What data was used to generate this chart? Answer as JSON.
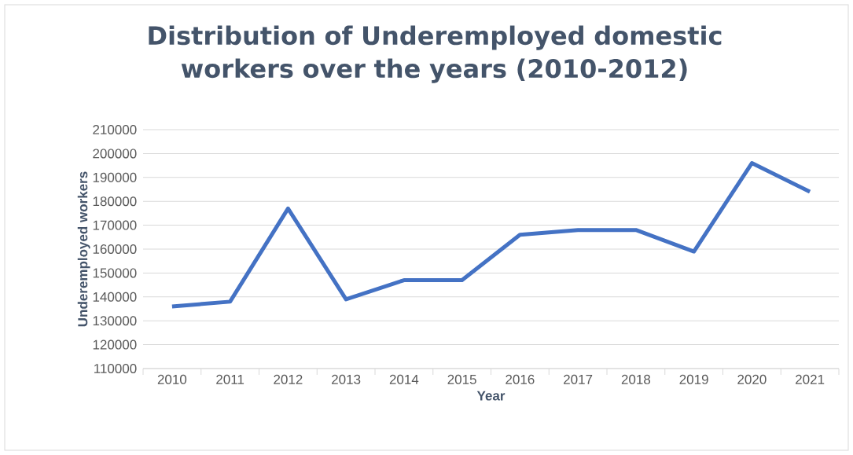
{
  "chart_data": {
    "type": "line",
    "title": "Distribution of Underemployed domestic workers over the years (2010-2012)",
    "xlabel": "Year",
    "ylabel": "Underemployed workers",
    "categories": [
      "2010",
      "2011",
      "2012",
      "2013",
      "2014",
      "2015",
      "2016",
      "2017",
      "2018",
      "2019",
      "2020",
      "2021"
    ],
    "series": [
      {
        "color": "#4472c4",
        "values": [
          136000,
          138000,
          177000,
          139000,
          147000,
          147000,
          166000,
          168000,
          168000,
          159000,
          196000,
          184000
        ]
      }
    ],
    "ylim": [
      110000,
      210000
    ],
    "yticks": [
      110000,
      120000,
      130000,
      140000,
      150000,
      160000,
      170000,
      180000,
      190000,
      200000,
      210000
    ],
    "grid": "y",
    "legend": false,
    "marker": "none",
    "line_style": "solid"
  }
}
